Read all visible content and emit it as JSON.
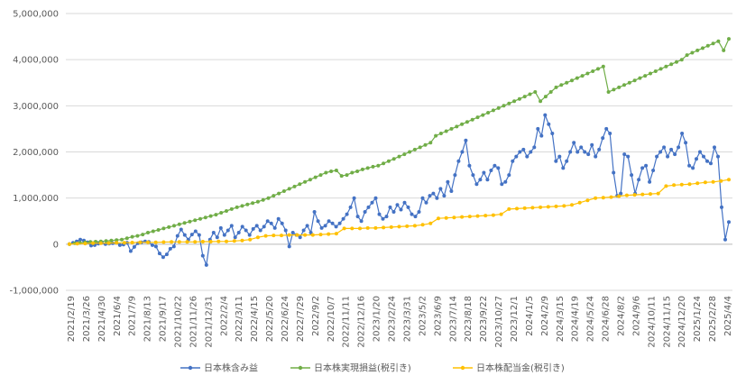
{
  "chart_data": {
    "type": "line",
    "title": "",
    "xlabel": "",
    "ylabel": "",
    "ylim": [
      -1000000,
      5000000
    ],
    "yticks": [
      -1000000,
      0,
      1000000,
      2000000,
      3000000,
      4000000,
      5000000
    ],
    "ytick_labels": [
      "-1,000,000",
      "0",
      "1,000,000",
      "2,000,000",
      "3,000,000",
      "4,000,000",
      "5,000,000"
    ],
    "negative_tick_color": "#ff0000",
    "grid": true,
    "legend_position": "bottom",
    "x_tick_labels": [
      "2021/2/19",
      "2021/3/26",
      "2021/4/30",
      "2021/6/4",
      "2021/7/9",
      "2021/8/13",
      "2021/9/17",
      "2021/10/22",
      "2021/11/26",
      "2021/12/31",
      "2022/2/4",
      "2022/3/11",
      "2022/4/15",
      "2022/5/20",
      "2022/6/24",
      "2022/7/29",
      "2022/9/2",
      "2022/10/7",
      "2022/11/11",
      "2022/12/16",
      "2023/1/20",
      "2023/2/24",
      "2023/3/31",
      "2023/5/2",
      "2023/6/9",
      "2023/7/14",
      "2023/8/18",
      "2023/9/22",
      "2023/10/27",
      "2023/12/1",
      "2024/1/5",
      "2024/2/9",
      "2024/3/15",
      "2024/4/19",
      "2024/5/24",
      "2024/6/28",
      "2024/8/2",
      "2024/9/6",
      "2024/10/11",
      "2024/11/15",
      "2024/12/20",
      "2025/1/24",
      "2025/2/28",
      "2025/4/4"
    ],
    "series": [
      {
        "name": "日本株含み益",
        "color": "#4472c4",
        "values": [
          0,
          30000,
          60000,
          100000,
          80000,
          40000,
          -30000,
          -20000,
          10000,
          30000,
          0,
          10000,
          20000,
          30000,
          -20000,
          -10000,
          30000,
          -150000,
          -60000,
          20000,
          40000,
          60000,
          50000,
          -20000,
          -50000,
          -200000,
          -280000,
          -220000,
          -100000,
          -50000,
          180000,
          320000,
          200000,
          100000,
          210000,
          280000,
          200000,
          -250000,
          -450000,
          100000,
          250000,
          150000,
          350000,
          200000,
          300000,
          400000,
          150000,
          250000,
          380000,
          300000,
          200000,
          330000,
          400000,
          300000,
          380000,
          500000,
          450000,
          350000,
          550000,
          450000,
          300000,
          -50000,
          250000,
          200000,
          150000,
          300000,
          400000,
          250000,
          700000,
          500000,
          350000,
          400000,
          500000,
          450000,
          380000,
          450000,
          550000,
          650000,
          800000,
          1000000,
          600000,
          500000,
          700000,
          800000,
          900000,
          1000000,
          650000,
          550000,
          600000,
          800000,
          700000,
          850000,
          750000,
          900000,
          800000,
          650000,
          600000,
          700000,
          1000000,
          900000,
          1050000,
          1100000,
          1000000,
          1200000,
          1050000,
          1350000,
          1150000,
          1500000,
          1800000,
          2000000,
          2250000,
          1700000,
          1500000,
          1300000,
          1400000,
          1550000,
          1400000,
          1600000,
          1700000,
          1650000,
          1300000,
          1350000,
          1500000,
          1800000,
          1900000,
          2000000,
          2050000,
          1900000,
          2000000,
          2100000,
          2500000,
          2350000,
          2800000,
          2600000,
          2400000,
          1800000,
          1900000,
          1650000,
          1800000,
          2000000,
          2200000,
          2000000,
          2100000,
          2000000,
          1950000,
          2150000,
          1900000,
          2050000,
          2300000,
          2500000,
          2400000,
          1550000,
          1050000,
          1100000,
          1950000,
          1900000,
          1500000,
          1100000,
          1400000,
          1650000,
          1700000,
          1350000,
          1600000,
          1900000,
          2000000,
          2100000,
          1900000,
          2050000,
          1950000,
          2100000,
          2400000,
          2200000,
          1700000,
          1650000,
          1850000,
          2000000,
          1900000,
          1800000,
          1750000,
          2100000,
          1900000,
          800000,
          100000,
          480000
        ]
      },
      {
        "name": "日本株実現損益(税引き)",
        "color": "#70ad47",
        "values": [
          0,
          20000,
          30000,
          40000,
          50000,
          55000,
          60000,
          70000,
          80000,
          90000,
          100000,
          130000,
          160000,
          180000,
          210000,
          250000,
          280000,
          310000,
          340000,
          370000,
          400000,
          430000,
          460000,
          490000,
          520000,
          550000,
          580000,
          610000,
          640000,
          680000,
          720000,
          760000,
          800000,
          830000,
          860000,
          890000,
          920000,
          960000,
          1000000,
          1050000,
          1100000,
          1150000,
          1200000,
          1250000,
          1300000,
          1350000,
          1400000,
          1450000,
          1500000,
          1550000,
          1580000,
          1600000,
          1480000,
          1500000,
          1550000,
          1580000,
          1620000,
          1650000,
          1680000,
          1700000,
          1750000,
          1800000,
          1850000,
          1900000,
          1950000,
          2000000,
          2050000,
          2100000,
          2150000,
          2200000,
          2350000,
          2400000,
          2450000,
          2500000,
          2550000,
          2600000,
          2650000,
          2700000,
          2750000,
          2800000,
          2850000,
          2900000,
          2950000,
          3000000,
          3050000,
          3100000,
          3150000,
          3200000,
          3250000,
          3300000,
          3100000,
          3200000,
          3300000,
          3400000,
          3450000,
          3500000,
          3550000,
          3600000,
          3650000,
          3700000,
          3750000,
          3800000,
          3850000,
          3300000,
          3350000,
          3400000,
          3450000,
          3500000,
          3550000,
          3600000,
          3650000,
          3700000,
          3750000,
          3800000,
          3850000,
          3900000,
          3950000,
          4000000,
          4100000,
          4150000,
          4200000,
          4250000,
          4300000,
          4350000,
          4400000,
          4200000,
          4450000
        ]
      },
      {
        "name": "日本株配当金(税引き)",
        "color": "#ffc000",
        "values": [
          0,
          10000,
          15000,
          20000,
          20000,
          25000,
          30000,
          30000,
          35000,
          40000,
          40000,
          40000,
          45000,
          50000,
          50000,
          50000,
          50000,
          55000,
          55000,
          60000,
          60000,
          70000,
          80000,
          100000,
          150000,
          180000,
          190000,
          190000,
          200000,
          200000,
          200000,
          200000,
          210000,
          220000,
          230000,
          340000,
          340000,
          340000,
          350000,
          350000,
          360000,
          370000,
          380000,
          390000,
          400000,
          420000,
          450000,
          560000,
          570000,
          580000,
          590000,
          600000,
          610000,
          620000,
          630000,
          650000,
          760000,
          770000,
          780000,
          790000,
          800000,
          810000,
          820000,
          830000,
          850000,
          900000,
          950000,
          1000000,
          1010000,
          1020000,
          1040000,
          1060000,
          1070000,
          1080000,
          1090000,
          1100000,
          1260000,
          1280000,
          1290000,
          1300000,
          1320000,
          1340000,
          1350000,
          1370000,
          1400000
        ]
      }
    ]
  }
}
